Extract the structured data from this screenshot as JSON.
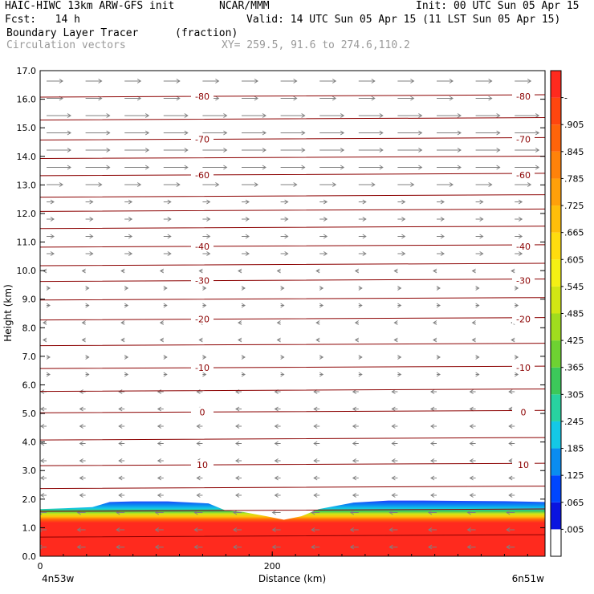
{
  "header": {
    "title_left": "HAIC-HIWC 13km ARW-GFS init",
    "org": "NCAR/MMM",
    "init": "Init: 00 UTC Sun 05 Apr 15",
    "fcst": "Fcst:   14 h",
    "valid": "Valid: 14 UTC Sun 05 Apr 15 (11 LST Sun 05 Apr 15)",
    "field1_name": "Boundary Layer Tracer",
    "field1_units": "(fraction)",
    "field2_name": "Circulation vectors",
    "xy_info": "XY= 259.5, 91.6 to 274.6,110.2"
  },
  "chart_data": {
    "type": "heatmap",
    "xlabel": "Distance (km)",
    "ylabel": "Height (km)",
    "xlim": [
      0,
      435
    ],
    "ylim": [
      0,
      17
    ],
    "x_ticks": [
      0,
      200
    ],
    "x_tick_labels": [
      "0",
      "200"
    ],
    "x_end_labels": [
      "4n53w",
      "6n51w"
    ],
    "y_ticks": [
      0,
      1,
      2,
      3,
      4,
      5,
      6,
      7,
      8,
      9,
      10,
      11,
      12,
      13,
      14,
      15,
      16,
      17
    ],
    "y_tick_labels": [
      "0.0",
      "1.0",
      "2.0",
      "3.0",
      "4.0",
      "5.0",
      "6.0",
      "7.0",
      "8.0",
      "9.0",
      "10.0",
      "11.0",
      "12.0",
      "13.0",
      "14.0",
      "15.0",
      "16.0",
      "17.0"
    ],
    "temperature_contours": [
      {
        "label": "10",
        "height_km": 3.2
      },
      {
        "label": "0",
        "height_km": 5.05
      },
      {
        "label": "-10",
        "height_km": 6.6
      },
      {
        "label": "-20",
        "height_km": 8.3
      },
      {
        "label": "-30",
        "height_km": 9.65
      },
      {
        "label": "-40",
        "height_km": 10.85
      },
      {
        "label": "-60",
        "height_km": 13.35
      },
      {
        "label": "-70",
        "height_km": 14.6
      },
      {
        "label": "-80",
        "height_km": 16.1
      }
    ],
    "unlabeled_contour_heights_km": [
      0.7,
      1.6,
      2.4,
      4.1,
      5.8,
      7.4,
      9.0,
      10.2,
      11.5,
      12.1,
      12.6,
      13.95,
      15.3
    ],
    "tracer_top_profile": {
      "x_km": [
        0,
        20,
        45,
        60,
        80,
        110,
        145,
        160,
        175,
        195,
        210,
        225,
        240,
        270,
        300,
        330,
        360,
        400,
        435
      ],
      "top_km": [
        1.65,
        1.68,
        1.72,
        1.9,
        1.92,
        1.92,
        1.85,
        1.6,
        1.55,
        1.4,
        1.28,
        1.4,
        1.65,
        1.88,
        1.95,
        1.95,
        1.94,
        1.93,
        1.9
      ]
    },
    "colorbar": {
      "labels": [
        ".005",
        ".065",
        ".125",
        ".185",
        ".245",
        ".305",
        ".365",
        ".425",
        ".485",
        ".545",
        ".605",
        ".665",
        ".725",
        ".785",
        ".845",
        ".905",
        "-"
      ],
      "colors": [
        "#ffffff",
        "#0a14e0",
        "#0046ff",
        "#0a8cf0",
        "#14c8e6",
        "#28d2a0",
        "#3cc85a",
        "#6ed232",
        "#a0dc1e",
        "#d2e614",
        "#f5f014",
        "#ffdc0f",
        "#ffbe0a",
        "#ffa00a",
        "#ff820a",
        "#ff640a",
        "#ff460f",
        "#ff2a1e"
      ]
    },
    "colors": {
      "contour": "#8b0000",
      "vector": "#808080",
      "tracer_max": "#ff2a1e"
    }
  }
}
